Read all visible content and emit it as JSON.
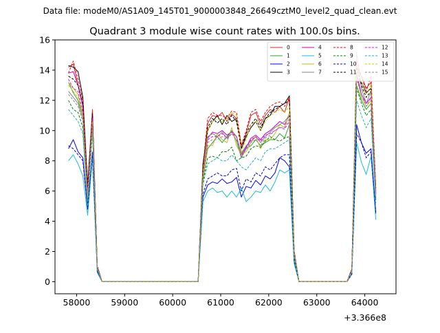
{
  "figure": {
    "suptitle": "Data file: modeM0/AS1A09_145T01_9000003848_26649cztM0_level2_quad_clean.evt"
  },
  "chart_data": {
    "type": "line",
    "title": "Quadrant 3 module wise count rates with 100.0s bins.",
    "xlabel": "",
    "ylabel": "",
    "x_offset_label": "+3.366e8",
    "x_ticks": [
      58000,
      59000,
      60000,
      61000,
      62000,
      63000,
      64000
    ],
    "y_ticks": [
      0,
      2,
      4,
      6,
      8,
      10,
      12,
      14,
      16
    ],
    "xlim": [
      57550,
      64650
    ],
    "ylim": [
      -0.8,
      16
    ],
    "legend": {
      "placement": "top-right",
      "columns": 4
    },
    "x": [
      57830,
      57930,
      58030,
      58130,
      58230,
      58330,
      58430,
      58530,
      58630,
      58730,
      58830,
      58930,
      59030,
      59130,
      59230,
      59330,
      59430,
      59530,
      59630,
      59730,
      59830,
      59930,
      60030,
      60130,
      60230,
      60330,
      60430,
      60530,
      60630,
      60730,
      60830,
      60930,
      61030,
      61130,
      61230,
      61330,
      61430,
      61530,
      61630,
      61730,
      61830,
      61930,
      62030,
      62130,
      62230,
      62330,
      62430,
      62530,
      62630,
      62730,
      62830,
      62930,
      63030,
      63130,
      63230,
      63330,
      63430,
      63530,
      63630,
      63730,
      63830,
      63930,
      64030,
      64130,
      64230
    ],
    "series": [
      {
        "name": "0",
        "color": "#d62728",
        "dash": "solid",
        "values": [
          14.2,
          14.4,
          13.0,
          11.6,
          6.2,
          11.4,
          1.0,
          0,
          0,
          0,
          0,
          0,
          0,
          0,
          0,
          0,
          0,
          0,
          0,
          0,
          0,
          0,
          0,
          0,
          0,
          0,
          0,
          0,
          7.5,
          10.5,
          11.0,
          10.9,
          11.2,
          10.6,
          11.1,
          10.8,
          9.0,
          9.8,
          11.0,
          11.2,
          10.4,
          11.0,
          11.4,
          11.2,
          11.6,
          11.2,
          12.2,
          2.0,
          0,
          0,
          0,
          0,
          0,
          0,
          0,
          0,
          0,
          0,
          0,
          0.8,
          14.2,
          13.6,
          12.8,
          13.2,
          6.0
        ]
      },
      {
        "name": "1",
        "color": "#2ca02c",
        "dash": "solid",
        "values": [
          13.2,
          12.5,
          12.0,
          11.0,
          5.5,
          10.8,
          0.9,
          0,
          0,
          0,
          0,
          0,
          0,
          0,
          0,
          0,
          0,
          0,
          0,
          0,
          0,
          0,
          0,
          0,
          0,
          0,
          0,
          0,
          6.8,
          8.8,
          9.2,
          9.6,
          9.2,
          9.6,
          10.0,
          9.3,
          8.2,
          8.8,
          9.0,
          9.4,
          9.0,
          9.2,
          9.4,
          9.4,
          9.8,
          9.5,
          10.4,
          1.7,
          0,
          0,
          0,
          0,
          0,
          0,
          0,
          0,
          0,
          0,
          0,
          0.7,
          13.0,
          12.0,
          11.4,
          11.8,
          5.4
        ]
      },
      {
        "name": "2",
        "color": "#0000ff",
        "dash": "solid",
        "values": [
          8.8,
          9.4,
          8.6,
          8.2,
          4.8,
          8.4,
          0.7,
          0,
          0,
          0,
          0,
          0,
          0,
          0,
          0,
          0,
          0,
          0,
          0,
          0,
          0,
          0,
          0,
          0,
          0,
          0,
          0,
          0,
          5.6,
          6.4,
          6.6,
          6.5,
          6.8,
          6.5,
          6.6,
          6.9,
          5.6,
          6.3,
          6.2,
          6.7,
          6.4,
          7.0,
          6.8,
          7.2,
          8.2,
          8.0,
          7.6,
          1.3,
          0,
          0,
          0,
          0,
          0,
          0,
          0,
          0,
          0,
          0,
          0,
          0.5,
          10.4,
          9.2,
          8.5,
          8.8,
          4.5
        ]
      },
      {
        "name": "3",
        "color": "#000000",
        "dash": "solid",
        "values": [
          14.3,
          14.2,
          13.9,
          12.2,
          6.4,
          11.2,
          1.0,
          0,
          0,
          0,
          0,
          0,
          0,
          0,
          0,
          0,
          0,
          0,
          0,
          0,
          0,
          0,
          0,
          0,
          0,
          0,
          0,
          0,
          7.8,
          10.0,
          10.6,
          11.0,
          10.4,
          11.0,
          10.6,
          10.8,
          8.8,
          9.6,
          10.2,
          10.6,
          10.0,
          10.8,
          11.0,
          11.6,
          11.6,
          11.8,
          12.3,
          2.0,
          0,
          0,
          0,
          0,
          0,
          0,
          0,
          0,
          0,
          0,
          0,
          0.8,
          13.4,
          13.2,
          12.5,
          12.8,
          6.2
        ]
      },
      {
        "name": "4",
        "color": "#bf00bf",
        "dash": "solid",
        "values": [
          13.8,
          13.9,
          13.0,
          11.6,
          6.0,
          11.0,
          1.0,
          0,
          0,
          0,
          0,
          0,
          0,
          0,
          0,
          0,
          0,
          0,
          0,
          0,
          0,
          0,
          0,
          0,
          0,
          0,
          0,
          0,
          7.2,
          9.5,
          9.9,
          9.8,
          10.0,
          9.7,
          9.9,
          9.6,
          8.4,
          8.9,
          9.5,
          9.7,
          9.4,
          9.8,
          10.0,
          10.3,
          10.6,
          10.4,
          11.0,
          1.9,
          0,
          0,
          0,
          0,
          0,
          0,
          0,
          0,
          0,
          0,
          0,
          0.8,
          13.8,
          12.4,
          11.8,
          12.2,
          5.8
        ]
      },
      {
        "name": "5",
        "color": "#17becf",
        "dash": "solid",
        "values": [
          8.0,
          8.4,
          7.8,
          7.0,
          4.4,
          8.2,
          0.6,
          0,
          0,
          0,
          0,
          0,
          0,
          0,
          0,
          0,
          0,
          0,
          0,
          0,
          0,
          0,
          0,
          0,
          0,
          0,
          0,
          0,
          5.3,
          6.0,
          6.2,
          5.9,
          6.0,
          5.6,
          6.0,
          5.6,
          6.2,
          5.3,
          5.6,
          6.0,
          5.9,
          6.4,
          6.0,
          6.6,
          7.4,
          7.2,
          7.4,
          1.2,
          0,
          0,
          0,
          0,
          0,
          0,
          0,
          0,
          0,
          0,
          0,
          0.5,
          9.2,
          7.9,
          7.1,
          8.3,
          4.1
        ]
      },
      {
        "name": "6",
        "color": "#bcbd22",
        "dash": "solid",
        "values": [
          13.2,
          12.8,
          12.4,
          11.0,
          5.6,
          10.6,
          0.9,
          0,
          0,
          0,
          0,
          0,
          0,
          0,
          0,
          0,
          0,
          0,
          0,
          0,
          0,
          0,
          0,
          0,
          0,
          0,
          0,
          0,
          6.6,
          9.0,
          9.0,
          9.8,
          9.4,
          9.2,
          10.2,
          9.0,
          8.4,
          8.6,
          9.2,
          9.6,
          8.8,
          9.4,
          9.4,
          9.8,
          10.4,
          10.2,
          11.2,
          1.8,
          0,
          0,
          0,
          0,
          0,
          0,
          0,
          0,
          0,
          0,
          0,
          0.7,
          13.6,
          12.2,
          11.6,
          12.0,
          5.6
        ]
      },
      {
        "name": "7",
        "color": "#808080",
        "dash": "solid",
        "values": [
          12.6,
          12.2,
          11.8,
          10.8,
          5.4,
          10.4,
          0.9,
          0,
          0,
          0,
          0,
          0,
          0,
          0,
          0,
          0,
          0,
          0,
          0,
          0,
          0,
          0,
          0,
          0,
          0,
          0,
          0,
          0,
          6.9,
          9.6,
          9.8,
          9.6,
          9.9,
          9.5,
          10.0,
          9.6,
          8.5,
          9.0,
          9.3,
          9.6,
          9.2,
          9.6,
          9.9,
          10.2,
          10.4,
          10.6,
          11.0,
          1.8,
          0,
          0,
          0,
          0,
          0,
          0,
          0,
          0,
          0,
          0,
          0,
          0.7,
          15.2,
          12.8,
          11.8,
          12.6,
          5.9
        ]
      },
      {
        "name": "8",
        "color": "#ff0000",
        "dash": "dashed",
        "values": [
          13.8,
          14.6,
          13.4,
          12.0,
          6.2,
          11.2,
          1.0,
          0,
          0,
          0,
          0,
          0,
          0,
          0,
          0,
          0,
          0,
          0,
          0,
          0,
          0,
          0,
          0,
          0,
          0,
          0,
          0,
          0,
          7.6,
          10.8,
          11.2,
          11.0,
          11.0,
          10.8,
          11.3,
          11.2,
          9.0,
          10.0,
          11.2,
          11.4,
          10.6,
          11.2,
          11.6,
          11.8,
          11.9,
          11.6,
          12.2,
          2.0,
          0,
          0,
          0,
          0,
          0,
          0,
          0,
          0,
          0,
          0,
          0,
          0.8,
          14.6,
          13.6,
          12.6,
          13.6,
          6.2
        ]
      },
      {
        "name": "9",
        "color": "#008000",
        "dash": "dashed",
        "values": [
          12.0,
          11.4,
          11.2,
          10.2,
          5.2,
          10.2,
          0.8,
          0,
          0,
          0,
          0,
          0,
          0,
          0,
          0,
          0,
          0,
          0,
          0,
          0,
          0,
          0,
          0,
          0,
          0,
          0,
          0,
          0,
          6.6,
          8.2,
          8.3,
          8.2,
          8.6,
          8.6,
          8.9,
          8.0,
          8.2,
          8.3,
          8.8,
          9.0,
          8.9,
          9.3,
          9.6,
          9.4,
          9.3,
          9.5,
          9.6,
          1.6,
          0,
          0,
          0,
          0,
          0,
          0,
          0,
          0,
          0,
          0,
          0,
          0.7,
          12.8,
          11.8,
          11.0,
          11.4,
          5.4
        ]
      },
      {
        "name": "10",
        "color": "#0000cc",
        "dash": "dashed",
        "values": [
          9.0,
          8.8,
          8.4,
          8.0,
          4.8,
          8.6,
          0.7,
          0,
          0,
          0,
          0,
          0,
          0,
          0,
          0,
          0,
          0,
          0,
          0,
          0,
          0,
          0,
          0,
          0,
          0,
          0,
          0,
          0,
          5.8,
          6.8,
          7.0,
          7.2,
          7.0,
          7.0,
          7.4,
          7.5,
          6.0,
          6.8,
          6.6,
          7.2,
          7.0,
          7.6,
          7.4,
          7.8,
          8.2,
          8.4,
          8.4,
          1.4,
          0,
          0,
          0,
          0,
          0,
          0,
          0,
          0,
          0,
          0,
          0,
          0.5,
          9.8,
          9.2,
          8.2,
          8.6,
          4.6
        ]
      },
      {
        "name": "11",
        "color": "#000000",
        "dash": "dashed",
        "values": [
          13.6,
          13.4,
          13.0,
          11.8,
          6.2,
          11.0,
          1.0,
          0,
          0,
          0,
          0,
          0,
          0,
          0,
          0,
          0,
          0,
          0,
          0,
          0,
          0,
          0,
          0,
          0,
          0,
          0,
          0,
          0,
          7.4,
          10.2,
          10.8,
          10.5,
          10.8,
          10.4,
          11.0,
          10.6,
          8.8,
          9.8,
          10.4,
          10.8,
          10.2,
          10.8,
          11.2,
          11.4,
          11.6,
          11.8,
          12.0,
          1.9,
          0,
          0,
          0,
          0,
          0,
          0,
          0,
          0,
          0,
          0,
          0,
          0.8,
          14.2,
          13.0,
          12.2,
          12.6,
          6.0
        ]
      },
      {
        "name": "12",
        "color": "#ff00ff",
        "dash": "dashed",
        "values": [
          13.4,
          12.8,
          12.6,
          11.2,
          5.8,
          10.8,
          0.9,
          0,
          0,
          0,
          0,
          0,
          0,
          0,
          0,
          0,
          0,
          0,
          0,
          0,
          0,
          0,
          0,
          0,
          0,
          0,
          0,
          0,
          7.0,
          9.4,
          9.6,
          9.6,
          9.8,
          9.5,
          9.8,
          9.6,
          8.3,
          8.8,
          9.4,
          9.6,
          9.3,
          9.7,
          9.8,
          10.0,
          10.2,
          10.1,
          10.6,
          1.8,
          0,
          0,
          0,
          0,
          0,
          0,
          0,
          0,
          0,
          0,
          0,
          0.7,
          13.6,
          12.4,
          11.8,
          12.2,
          5.8
        ]
      },
      {
        "name": "13",
        "color": "#20b2aa",
        "dash": "dashed",
        "values": [
          11.4,
          11.0,
          10.6,
          9.8,
          5.0,
          9.8,
          0.8,
          0,
          0,
          0,
          0,
          0,
          0,
          0,
          0,
          0,
          0,
          0,
          0,
          0,
          0,
          0,
          0,
          0,
          0,
          0,
          0,
          0,
          6.4,
          7.8,
          8.0,
          8.2,
          8.0,
          8.0,
          8.4,
          8.0,
          7.6,
          7.4,
          7.8,
          8.2,
          8.0,
          8.6,
          8.8,
          8.8,
          9.0,
          9.2,
          9.4,
          1.5,
          0,
          0,
          0,
          0,
          0,
          0,
          0,
          0,
          0,
          0,
          0,
          0.6,
          12.0,
          11.0,
          10.2,
          10.8,
          5.2
        ]
      },
      {
        "name": "14",
        "color": "#cccc00",
        "dash": "dashed",
        "values": [
          13.0,
          12.6,
          12.2,
          11.0,
          5.6,
          10.6,
          0.9,
          0,
          0,
          0,
          0,
          0,
          0,
          0,
          0,
          0,
          0,
          0,
          0,
          0,
          0,
          0,
          0,
          0,
          0,
          0,
          0,
          0,
          7.2,
          10.0,
          10.6,
          10.8,
          10.6,
          10.8,
          11.2,
          11.0,
          8.6,
          9.4,
          10.4,
          10.6,
          10.0,
          10.6,
          11.0,
          11.2,
          11.4,
          11.2,
          11.6,
          1.9,
          0,
          0,
          0,
          0,
          0,
          0,
          0,
          0,
          0,
          0,
          0,
          0.7,
          14.2,
          13.2,
          12.4,
          13.0,
          6.0
        ]
      },
      {
        "name": "15",
        "color": "#888888",
        "dash": "dashed",
        "values": [
          12.4,
          12.0,
          11.6,
          10.6,
          5.4,
          10.4,
          0.9,
          0,
          0,
          0,
          0,
          0,
          0,
          0,
          0,
          0,
          0,
          0,
          0,
          0,
          0,
          0,
          0,
          0,
          0,
          0,
          0,
          0,
          6.8,
          9.2,
          9.4,
          9.4,
          9.6,
          9.4,
          9.8,
          9.4,
          8.4,
          8.8,
          9.2,
          9.4,
          9.0,
          9.5,
          9.7,
          10.0,
          10.2,
          10.2,
          10.8,
          1.8,
          0,
          0,
          0,
          0,
          0,
          0,
          0,
          0,
          0,
          0,
          0,
          0.7,
          13.4,
          12.4,
          11.6,
          12.2,
          5.8
        ]
      }
    ]
  }
}
